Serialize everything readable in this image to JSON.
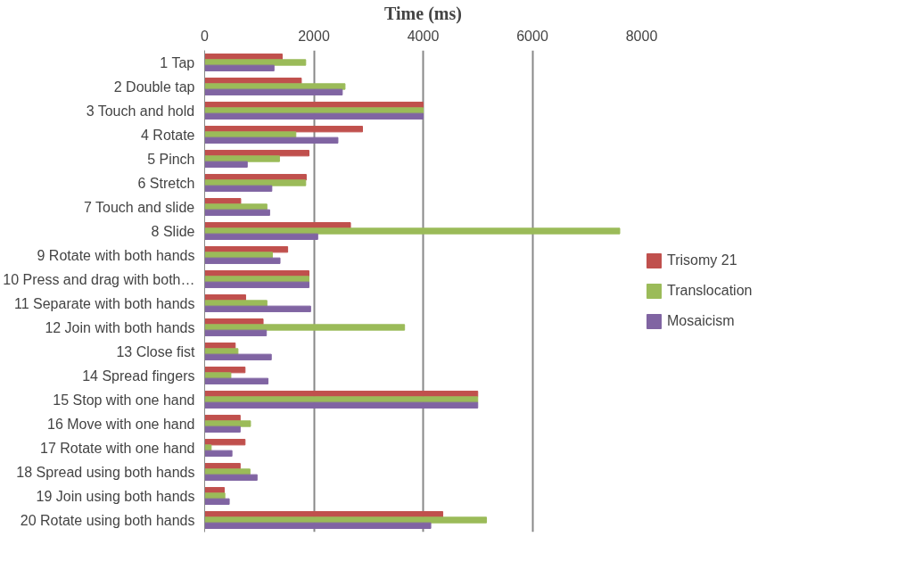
{
  "chart_data": {
    "type": "bar",
    "orientation": "horizontal",
    "xlabel": "Time (ms)",
    "categories": [
      "1 Tap",
      "2 Double tap",
      "3 Touch and hold",
      "4 Rotate",
      "5 Pinch",
      "6 Stretch",
      "7 Touch and slide",
      "8 Slide",
      "9 Rotate with both hands",
      "10 Press and drag with both…",
      "11 Separate with both hands",
      "12 Join with both hands",
      "13 Close fist",
      "14 Spread fingers",
      "15 Stop with one hand",
      "16 Move with one hand",
      "17 Rotate with one hand",
      "18 Spread using both hands",
      "19 Join using both hands",
      "20 Rotate using both hands"
    ],
    "series": [
      {
        "name": "Trisomy 21",
        "color": "#c0504d",
        "values": [
          1420,
          1770,
          4000,
          2890,
          1910,
          1860,
          660,
          2670,
          1520,
          1910,
          750,
          1070,
          560,
          740,
          5000,
          650,
          740,
          650,
          360,
          4360
        ]
      },
      {
        "name": "Translocation",
        "color": "#9bbb59",
        "values": [
          1850,
          2570,
          4000,
          1670,
          1370,
          1850,
          1140,
          7600,
          1240,
          1910,
          1140,
          3660,
          610,
          480,
          5000,
          840,
          120,
          830,
          370,
          5160
        ]
      },
      {
        "name": "Mosaicism",
        "color": "#8064a2",
        "values": [
          1270,
          2520,
          4000,
          2440,
          780,
          1230,
          1190,
          2070,
          1380,
          1910,
          1940,
          1130,
          1220,
          1160,
          5000,
          650,
          500,
          960,
          450,
          4140
        ]
      }
    ],
    "xlim": [
      0,
      8000
    ],
    "xticks": [
      0,
      2000,
      4000,
      6000,
      8000
    ],
    "grid": "x",
    "legend": "right"
  }
}
